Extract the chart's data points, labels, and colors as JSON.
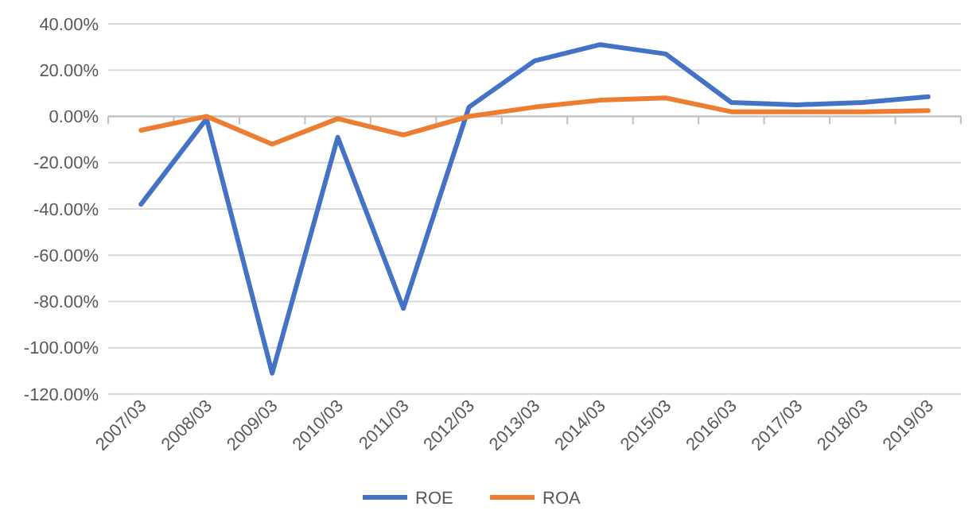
{
  "chart_data": {
    "type": "line",
    "categories": [
      "2007/03",
      "2008/03",
      "2009/03",
      "2010/03",
      "2011/03",
      "2012/03",
      "2013/03",
      "2014/03",
      "2015/03",
      "2016/03",
      "2017/03",
      "2018/03",
      "2019/03"
    ],
    "series": [
      {
        "name": "ROE",
        "color": "#4472c4",
        "values": [
          -38,
          -1,
          -111,
          -9,
          -83,
          4,
          24,
          31,
          27,
          6,
          5,
          6,
          8.5
        ]
      },
      {
        "name": "ROA",
        "color": "#ed7d31",
        "values": [
          -6,
          0,
          -12,
          -1,
          -8,
          0,
          4,
          7,
          8,
          2,
          2,
          2,
          2.5
        ]
      }
    ],
    "ylim": [
      -120,
      40
    ],
    "yticks": [
      {
        "value": -120,
        "label": "-120.00%"
      },
      {
        "value": -100,
        "label": "-100.00%"
      },
      {
        "value": -80,
        "label": "-80.00%"
      },
      {
        "value": -60,
        "label": "-60.00%"
      },
      {
        "value": -40,
        "label": "-40.00%"
      },
      {
        "value": -20,
        "label": "-20.00%"
      },
      {
        "value": 0,
        "label": "0.00%"
      },
      {
        "value": 20,
        "label": "20.00%"
      },
      {
        "value": 40,
        "label": "40.00%"
      }
    ],
    "grid": "y",
    "legend": "bottom",
    "marker": "none",
    "line_style": "solid"
  }
}
